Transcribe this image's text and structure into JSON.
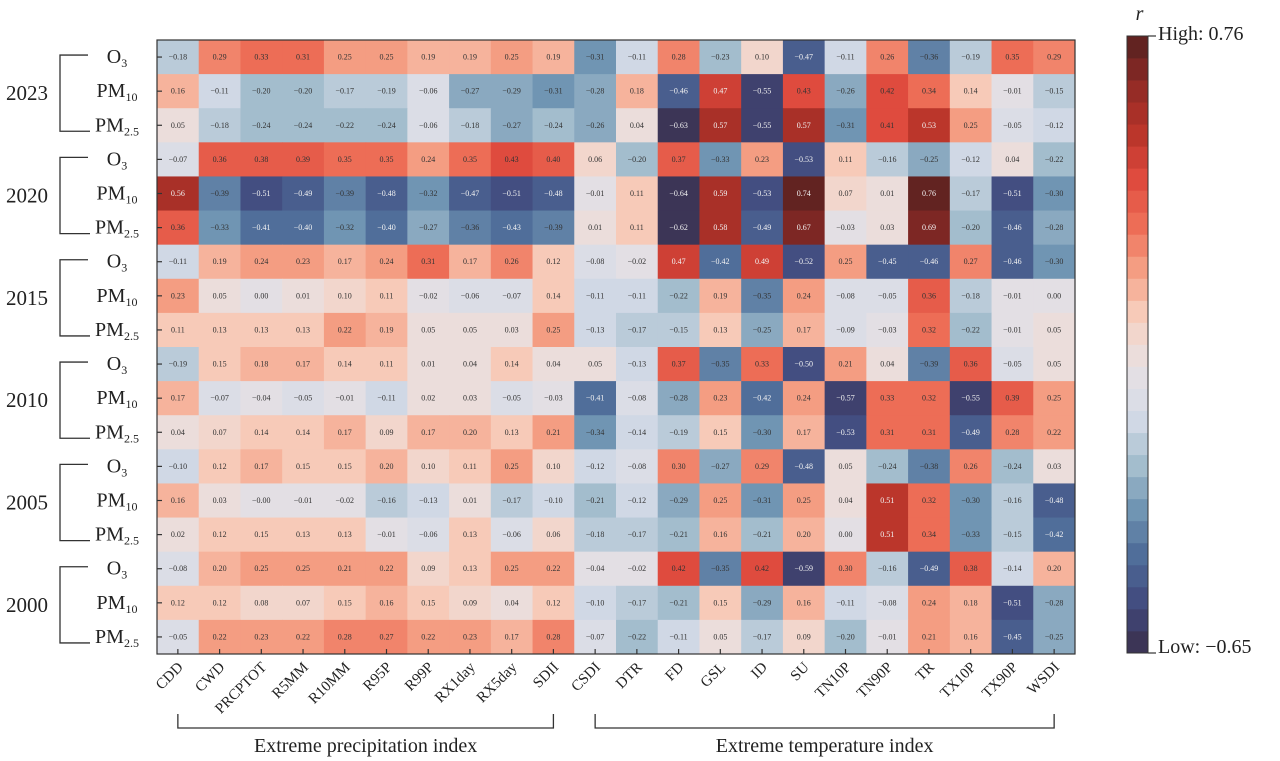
{
  "chart_data": {
    "type": "heatmap",
    "title": "",
    "colorbar": {
      "title": "r",
      "high_label": "High: 0.76",
      "low_label": "Low: −0.65",
      "max": 0.76,
      "min": -0.65,
      "colors": [
        "#3b2f4a",
        "#41497d",
        "#4d6a98",
        "#6f94b2",
        "#a6bfce",
        "#d6dce8",
        "#e6e0e3",
        "#f7d3c4",
        "#f5a388",
        "#ee6f57",
        "#df4a3e",
        "#b83429",
        "#8f2a26",
        "#552120"
      ]
    },
    "x_categories": [
      "CDD",
      "CWD",
      "PRCPTOT",
      "R5MM",
      "R10MM",
      "R95P",
      "R99P",
      "RX1day",
      "RX5day",
      "SDII",
      "CSDI",
      "DTR",
      "FD",
      "GSL",
      "ID",
      "SU",
      "TN10P",
      "TN90P",
      "TR",
      "TX10P",
      "TX90P",
      "WSDI"
    ],
    "x_groups": [
      {
        "label": "Extreme precipitation index",
        "start": "CDD",
        "end": "SDII"
      },
      {
        "label": "Extreme temperature index",
        "start": "CSDI",
        "end": "WSDI"
      }
    ],
    "y_groups": [
      {
        "year": "2023",
        "pollutants": [
          {
            "name": "O",
            "sub": "3",
            "values": [
              -0.18,
              0.29,
              0.33,
              0.31,
              0.25,
              0.25,
              0.19,
              0.19,
              0.25,
              0.19,
              -0.31,
              -0.11,
              0.28,
              -0.23,
              0.1,
              -0.47,
              -0.11,
              0.26,
              -0.36,
              -0.19,
              0.35,
              0.29
            ]
          },
          {
            "name": "PM",
            "sub": "10",
            "values": [
              0.16,
              -0.11,
              -0.2,
              -0.2,
              -0.17,
              -0.19,
              -0.06,
              -0.27,
              -0.29,
              -0.31,
              -0.28,
              0.18,
              -0.46,
              0.47,
              -0.55,
              0.43,
              -0.26,
              0.42,
              0.34,
              0.14,
              -0.01,
              -0.15
            ]
          },
          {
            "name": "PM",
            "sub": "2.5",
            "values": [
              0.05,
              -0.18,
              -0.24,
              -0.24,
              -0.22,
              -0.24,
              -0.06,
              -0.18,
              -0.27,
              -0.24,
              -0.26,
              0.04,
              -0.63,
              0.57,
              -0.55,
              0.57,
              -0.31,
              0.41,
              0.53,
              0.25,
              -0.05,
              -0.12
            ]
          }
        ]
      },
      {
        "year": "2020",
        "pollutants": [
          {
            "name": "O",
            "sub": "3",
            "values": [
              -0.07,
              0.36,
              0.38,
              0.39,
              0.35,
              0.35,
              0.24,
              0.35,
              0.43,
              0.4,
              0.06,
              -0.2,
              0.37,
              -0.33,
              0.23,
              -0.53,
              0.11,
              -0.16,
              -0.25,
              -0.12,
              0.04,
              -0.22
            ]
          },
          {
            "name": "PM",
            "sub": "10",
            "values": [
              0.56,
              -0.39,
              -0.51,
              -0.49,
              -0.39,
              -0.48,
              -0.32,
              -0.47,
              -0.51,
              -0.48,
              -0.01,
              0.11,
              -0.64,
              0.59,
              -0.53,
              0.74,
              0.07,
              0.01,
              0.76,
              -0.17,
              -0.51,
              -0.3
            ]
          },
          {
            "name": "PM",
            "sub": "2.5",
            "values": [
              0.36,
              -0.33,
              -0.41,
              -0.4,
              -0.32,
              -0.4,
              -0.27,
              -0.36,
              -0.43,
              -0.39,
              0.01,
              0.11,
              -0.62,
              0.58,
              -0.49,
              0.67,
              -0.03,
              0.03,
              0.69,
              -0.2,
              -0.46,
              -0.28
            ]
          }
        ]
      },
      {
        "year": "2015",
        "pollutants": [
          {
            "name": "O",
            "sub": "3",
            "values": [
              -0.11,
              0.19,
              0.24,
              0.23,
              0.17,
              0.24,
              0.31,
              0.17,
              0.26,
              0.12,
              -0.08,
              -0.02,
              0.47,
              -0.42,
              0.49,
              -0.52,
              0.25,
              -0.45,
              -0.46,
              0.27,
              -0.46,
              -0.3
            ]
          },
          {
            "name": "PM",
            "sub": "10",
            "values": [
              0.23,
              0.05,
              0.0,
              0.01,
              0.1,
              0.11,
              -0.02,
              -0.06,
              -0.07,
              0.14,
              -0.11,
              -0.11,
              -0.22,
              0.19,
              -0.35,
              0.24,
              -0.08,
              -0.05,
              0.36,
              -0.18,
              -0.01,
              0.0
            ]
          },
          {
            "name": "PM",
            "sub": "2.5",
            "values": [
              0.11,
              0.13,
              0.13,
              0.13,
              0.22,
              0.19,
              0.05,
              0.05,
              0.03,
              0.25,
              -0.13,
              -0.17,
              -0.15,
              0.13,
              -0.25,
              0.17,
              -0.09,
              -0.03,
              0.32,
              -0.22,
              -0.01,
              0.05
            ]
          }
        ]
      },
      {
        "year": "2010",
        "pollutants": [
          {
            "name": "O",
            "sub": "3",
            "values": [
              -0.19,
              0.15,
              0.18,
              0.17,
              0.14,
              0.11,
              0.01,
              0.04,
              0.14,
              0.04,
              0.05,
              -0.13,
              0.37,
              -0.35,
              0.33,
              -0.5,
              0.21,
              0.04,
              -0.39,
              0.36,
              -0.05,
              0.05
            ]
          },
          {
            "name": "PM",
            "sub": "10",
            "values": [
              0.17,
              -0.07,
              -0.04,
              -0.05,
              -0.01,
              -0.11,
              0.02,
              0.03,
              -0.05,
              -0.03,
              -0.41,
              -0.08,
              -0.28,
              0.23,
              -0.42,
              0.24,
              -0.57,
              0.33,
              0.32,
              -0.55,
              0.39,
              0.25
            ]
          },
          {
            "name": "PM",
            "sub": "2.5",
            "values": [
              0.04,
              0.07,
              0.14,
              0.14,
              0.17,
              0.09,
              0.17,
              0.2,
              0.13,
              0.21,
              -0.34,
              -0.14,
              -0.19,
              0.15,
              -0.3,
              0.17,
              -0.53,
              0.31,
              0.31,
              -0.49,
              0.28,
              0.22
            ]
          }
        ]
      },
      {
        "year": "2005",
        "pollutants": [
          {
            "name": "O",
            "sub": "3",
            "values": [
              -0.1,
              0.12,
              0.17,
              0.15,
              0.15,
              0.2,
              0.1,
              0.11,
              0.25,
              0.1,
              -0.12,
              -0.08,
              0.3,
              -0.27,
              0.29,
              -0.48,
              0.05,
              -0.24,
              -0.38,
              0.26,
              -0.24,
              0.03
            ]
          },
          {
            "name": "PM",
            "sub": "10",
            "values": [
              0.16,
              0.03,
              -0.0,
              -0.01,
              -0.02,
              -0.16,
              -0.13,
              0.01,
              -0.17,
              -0.1,
              -0.21,
              -0.12,
              -0.29,
              0.25,
              -0.31,
              0.25,
              0.04,
              0.51,
              0.32,
              -0.3,
              -0.16,
              -0.48
            ]
          },
          {
            "name": "PM",
            "sub": "2.5",
            "values": [
              0.02,
              0.12,
              0.15,
              0.13,
              0.13,
              -0.01,
              -0.06,
              0.13,
              -0.06,
              0.06,
              -0.18,
              -0.17,
              -0.21,
              0.16,
              -0.21,
              0.2,
              0.0,
              0.51,
              0.34,
              -0.33,
              -0.15,
              -0.42
            ]
          }
        ]
      },
      {
        "year": "2000",
        "pollutants": [
          {
            "name": "O",
            "sub": "3",
            "values": [
              -0.08,
              0.2,
              0.25,
              0.25,
              0.21,
              0.22,
              0.09,
              0.13,
              0.25,
              0.22,
              -0.04,
              -0.02,
              0.42,
              -0.35,
              0.42,
              -0.59,
              0.3,
              -0.16,
              -0.49,
              0.38,
              -0.14,
              0.2
            ]
          },
          {
            "name": "PM",
            "sub": "10",
            "values": [
              0.12,
              0.12,
              0.08,
              0.07,
              0.15,
              0.16,
              0.15,
              0.09,
              0.04,
              0.12,
              -0.1,
              -0.17,
              -0.21,
              0.15,
              -0.29,
              0.16,
              -0.11,
              -0.08,
              0.24,
              0.18,
              -0.51,
              -0.28
            ]
          },
          {
            "name": "PM",
            "sub": "2.5",
            "values": [
              -0.05,
              0.22,
              0.23,
              0.22,
              0.28,
              0.27,
              0.22,
              0.23,
              0.17,
              0.28,
              -0.07,
              -0.22,
              -0.11,
              0.05,
              -0.17,
              0.09,
              -0.2,
              -0.01,
              0.21,
              0.16,
              -0.45,
              -0.25
            ]
          }
        ]
      }
    ]
  }
}
